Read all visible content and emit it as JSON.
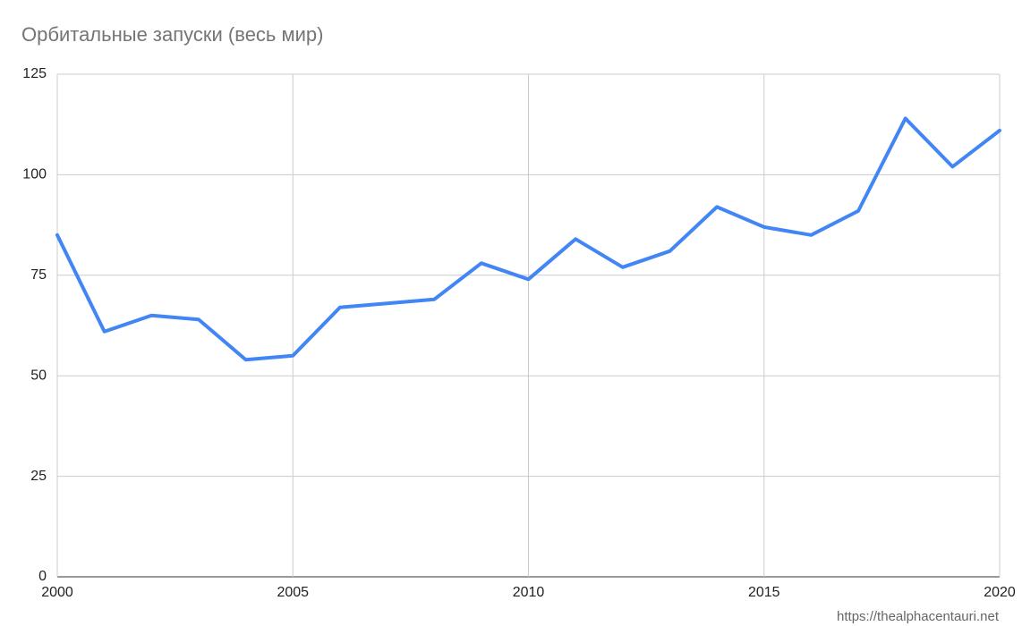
{
  "chart_data": {
    "type": "line",
    "title": "Орбитальные запуски (весь мир)",
    "annotation": "https://thealphacentauri.net",
    "x": [
      2000,
      2001,
      2002,
      2003,
      2004,
      2005,
      2006,
      2007,
      2008,
      2009,
      2010,
      2011,
      2012,
      2013,
      2014,
      2015,
      2016,
      2017,
      2018,
      2019,
      2020
    ],
    "series": [
      {
        "name": "Орбитальные запуски",
        "color": "#4285f4",
        "values": [
          85,
          61,
          65,
          64,
          54,
          55,
          67,
          68,
          69,
          78,
          74,
          84,
          77,
          81,
          92,
          87,
          85,
          91,
          114,
          102,
          111
        ]
      }
    ],
    "xlim": [
      2000,
      2020
    ],
    "xticks": [
      2000,
      2005,
      2010,
      2015,
      2020
    ],
    "ylim": [
      0,
      125
    ],
    "yticks": [
      0,
      25,
      50,
      75,
      100,
      125
    ],
    "grid": true
  }
}
